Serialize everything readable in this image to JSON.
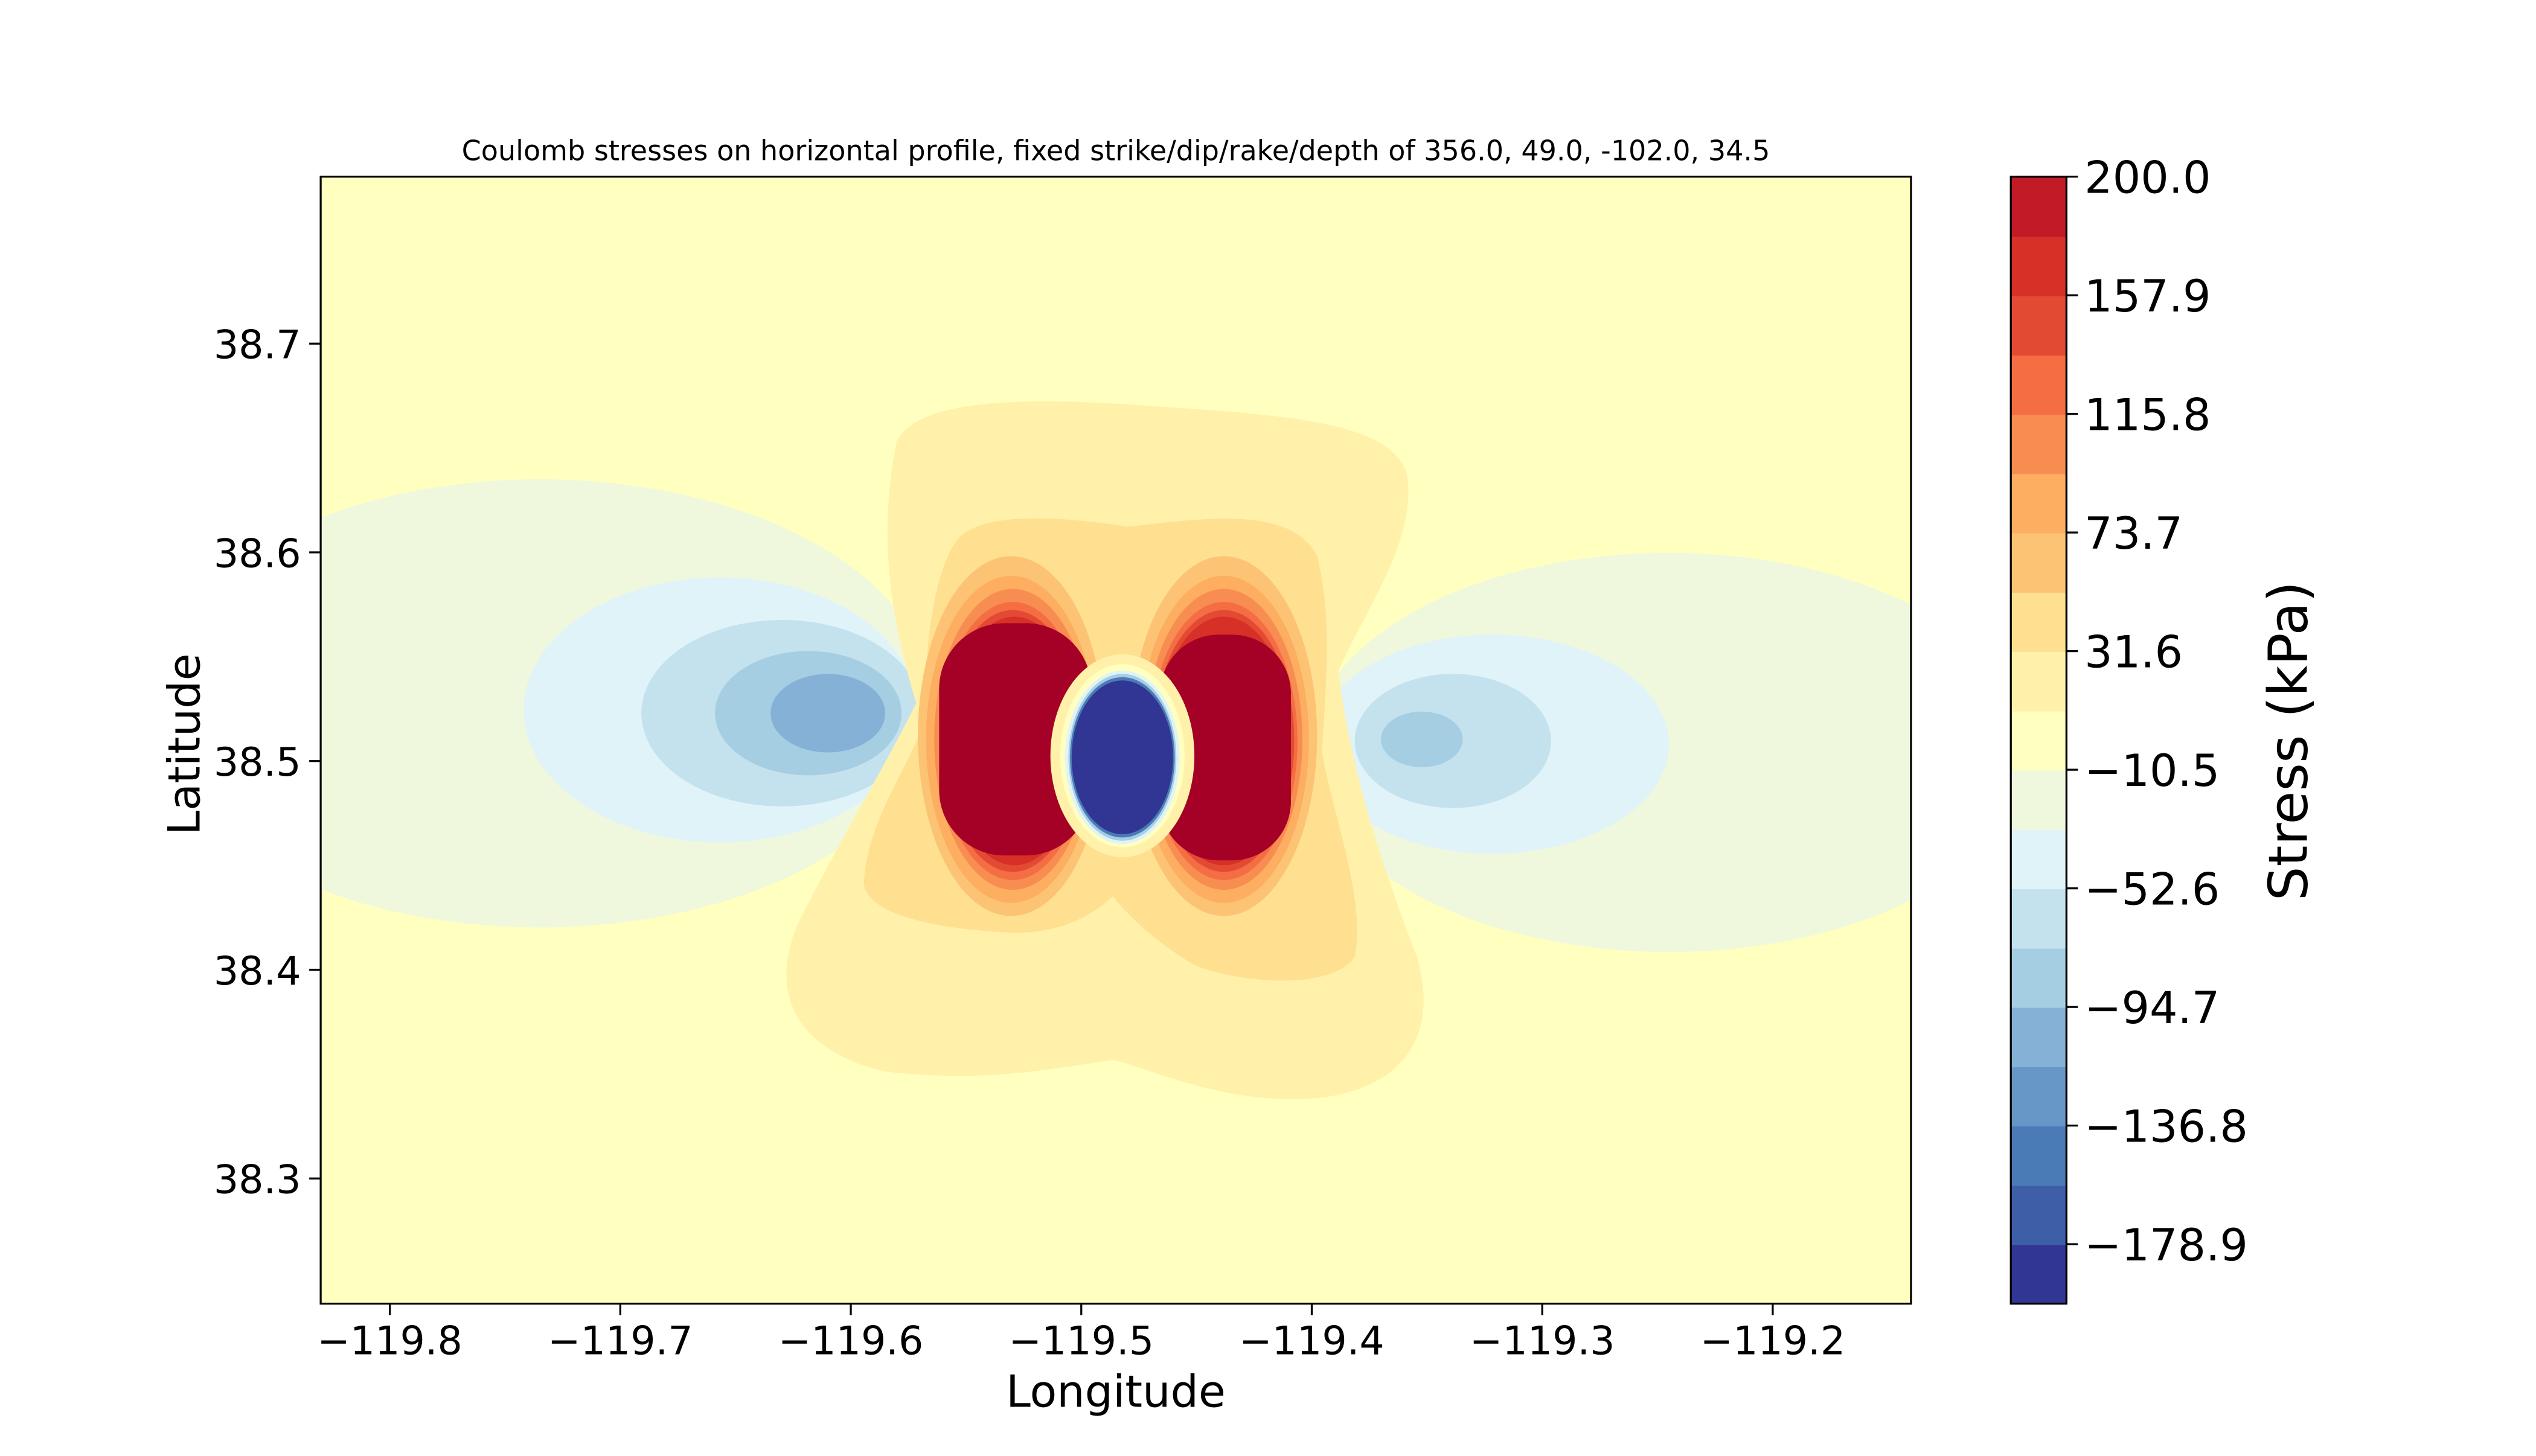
{
  "chart_data": {
    "type": "contour",
    "title": "Coulomb stresses on horizontal profile, fixed strike/dip/rake/depth of 356.0, 49.0, -102.0, 34.5",
    "xlabel": "Longitude",
    "ylabel": "Latitude",
    "xlim": [
      -119.83,
      -119.14
    ],
    "ylim": [
      38.24,
      38.78
    ],
    "xticks": [
      "−119.8",
      "−119.7",
      "−119.6",
      "−119.5",
      "−119.4",
      "−119.3",
      "−119.2"
    ],
    "xtick_values": [
      -119.8,
      -119.7,
      -119.6,
      -119.5,
      -119.4,
      -119.3,
      -119.2
    ],
    "yticks": [
      "38.3",
      "38.4",
      "38.5",
      "38.6",
      "38.7"
    ],
    "ytick_values": [
      38.3,
      38.4,
      38.5,
      38.6,
      38.7
    ],
    "colorbar": {
      "label": "Stress (kPa)",
      "range": [
        -200.0,
        200.0
      ],
      "ticks": [
        "200.0",
        "157.9",
        "115.8",
        "73.7",
        "31.6",
        "−10.5",
        "−52.6",
        "−94.7",
        "−136.8",
        "−178.9"
      ],
      "tick_values": [
        200.0,
        157.9,
        115.8,
        73.7,
        31.6,
        -10.5,
        -52.6,
        -94.7,
        -136.8,
        -178.9
      ],
      "levels": [
        -200.0,
        -178.9,
        -157.9,
        -136.8,
        -115.8,
        -94.7,
        -73.7,
        -52.6,
        -31.6,
        -10.5,
        10.5,
        31.6,
        52.6,
        73.7,
        94.7,
        115.8,
        136.8,
        157.9,
        178.9,
        200.0
      ],
      "colormap": "RdYlBu_r",
      "colors": [
        "#313695",
        "#3f5ea8",
        "#4a7bb7",
        "#6797c7",
        "#85b1d6",
        "#a5cee3",
        "#c4e2ee",
        "#e0f3f8",
        "#eff8dd",
        "#ffffbf",
        "#fff1aa",
        "#fee090",
        "#fdc374",
        "#fdae61",
        "#f88d52",
        "#f46d43",
        "#e34a33",
        "#d73027",
        "#c31a28",
        "#a50026"
      ]
    },
    "field": {
      "background_level": "#ffffbf",
      "features": [
        {
          "kind": "positive-lobe",
          "lon": -119.535,
          "lat": 38.505,
          "peak_kPa": 200.0
        },
        {
          "kind": "positive-lobe",
          "lon": -119.435,
          "lat": 38.505,
          "peak_kPa": 200.0
        },
        {
          "kind": "negative-core",
          "lon": -119.488,
          "lat": 38.5,
          "peak_kPa": -200.0
        },
        {
          "kind": "negative-lobe",
          "lon": -119.61,
          "lat": 38.525,
          "peak_kPa": -115.8
        },
        {
          "kind": "negative-lobe",
          "lon": -119.355,
          "lat": 38.51,
          "peak_kPa": -94.7
        }
      ]
    }
  }
}
